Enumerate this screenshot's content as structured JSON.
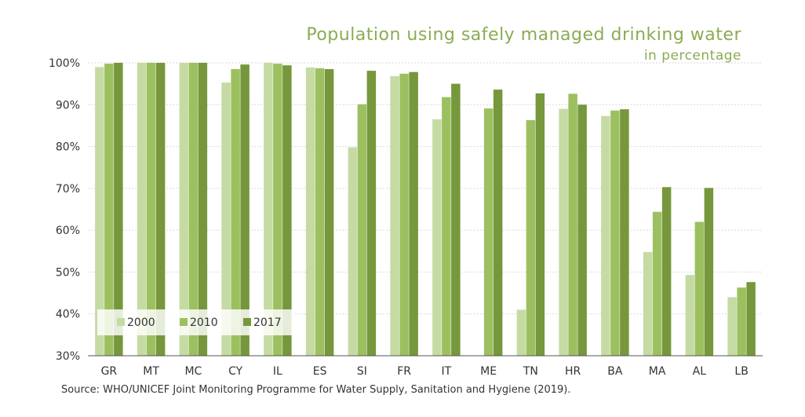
{
  "chart_data": {
    "type": "bar",
    "title": "Population using safely managed drinking water",
    "subtitle": "in percentage",
    "categories": [
      "GR",
      "MT",
      "MC",
      "CY",
      "IL",
      "ES",
      "SI",
      "FR",
      "IT",
      "ME",
      "TN",
      "HR",
      "BA",
      "MA",
      "AL",
      "LB"
    ],
    "series": [
      {
        "name": "2000",
        "color": "#c5dba3",
        "values": [
          99.0,
          100,
          100,
          95.3,
          100,
          98.9,
          79.8,
          96.8,
          86.5,
          30.1,
          41.0,
          89.0,
          87.3,
          54.8,
          49.3,
          44.0
        ]
      },
      {
        "name": "2010",
        "color": "#9cc05f",
        "values": [
          99.8,
          100,
          100,
          98.5,
          99.8,
          98.7,
          90.1,
          97.4,
          91.8,
          89.1,
          86.3,
          92.6,
          88.6,
          64.4,
          62.0,
          46.3
        ]
      },
      {
        "name": "2017",
        "color": "#76973b",
        "values": [
          100,
          100,
          100,
          99.6,
          99.4,
          98.5,
          98.1,
          97.8,
          95.0,
          93.6,
          92.7,
          90.0,
          88.9,
          70.3,
          70.1,
          47.6
        ]
      }
    ],
    "ylim": [
      30,
      100
    ],
    "yticks": [
      "30%",
      "40%",
      "50%",
      "60%",
      "70%",
      "80%",
      "90%",
      "100%"
    ],
    "ytick_values": [
      30,
      40,
      50,
      60,
      70,
      80,
      90,
      100
    ],
    "xlabel": "",
    "ylabel": "",
    "legend_position": "bottom-left",
    "grid": true
  },
  "source": "Source:  WHO/UNICEF Joint Monitoring Programme for Water Supply, Sanitation and Hygiene (2019)."
}
